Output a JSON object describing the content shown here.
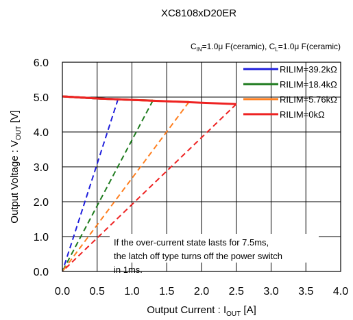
{
  "chart_data": {
    "type": "line",
    "title": "XC8108xD20ER",
    "conditions": {
      "cin_label": "C",
      "cin_sub": "IN",
      "cin_value": "=1.0μ F(ceramic), ",
      "cl_label": "C",
      "cl_sub": "L",
      "cl_value": "=1.0μ F(ceramic)"
    },
    "xlabel": {
      "main": "Output Current : I",
      "sub": "OUT",
      "unit": " [A]"
    },
    "ylabel": {
      "main": "Output Voltage : V",
      "sub": "OUT",
      "unit": " [V]"
    },
    "xlim": [
      0,
      4.0
    ],
    "ylim": [
      0,
      6.0
    ],
    "xticks": [
      "0.0",
      "0.5",
      "1.0",
      "1.5",
      "2.0",
      "2.5",
      "3.0",
      "3.5",
      "4.0"
    ],
    "yticks": [
      "0.0",
      "1.0",
      "2.0",
      "3.0",
      "4.0",
      "5.0",
      "6.0"
    ],
    "grid": true,
    "legend_position": "top-right",
    "series": [
      {
        "name": "RILIM=39.2kΩ",
        "color": "#1f1fdc",
        "solid": [
          [
            0.0,
            5.02
          ],
          [
            0.5,
            4.96
          ],
          [
            0.8,
            4.94
          ]
        ],
        "dashed": [
          [
            0.8,
            4.94
          ],
          [
            0.0,
            0.0
          ]
        ]
      },
      {
        "name": "RILIM=18.4kΩ",
        "color": "#1e7b1e",
        "solid": [
          [
            0.0,
            5.02
          ],
          [
            0.5,
            4.96
          ],
          [
            1.0,
            4.92
          ],
          [
            1.3,
            4.9
          ]
        ],
        "dashed": [
          [
            1.3,
            4.9
          ],
          [
            0.0,
            0.0
          ]
        ]
      },
      {
        "name": "RILIM=5.76kΩ",
        "color": "#ff7f1f",
        "solid": [
          [
            0.0,
            5.02
          ],
          [
            0.5,
            4.96
          ],
          [
            1.0,
            4.92
          ],
          [
            1.5,
            4.88
          ],
          [
            1.82,
            4.86
          ]
        ],
        "dashed": [
          [
            1.82,
            4.86
          ],
          [
            0.0,
            0.0
          ]
        ]
      },
      {
        "name": "RILIM=0kΩ",
        "color": "#ee2222",
        "solid": [
          [
            0.0,
            5.02
          ],
          [
            0.5,
            4.96
          ],
          [
            1.0,
            4.92
          ],
          [
            1.5,
            4.88
          ],
          [
            2.0,
            4.84
          ],
          [
            2.5,
            4.8
          ]
        ],
        "dashed": [
          [
            2.5,
            4.8
          ],
          [
            0.0,
            0.0
          ]
        ]
      }
    ],
    "annotation": [
      "If the over-current state lasts for 7.5ms,",
      "the latch off type turns off the power switch",
      "in 1ms."
    ]
  }
}
